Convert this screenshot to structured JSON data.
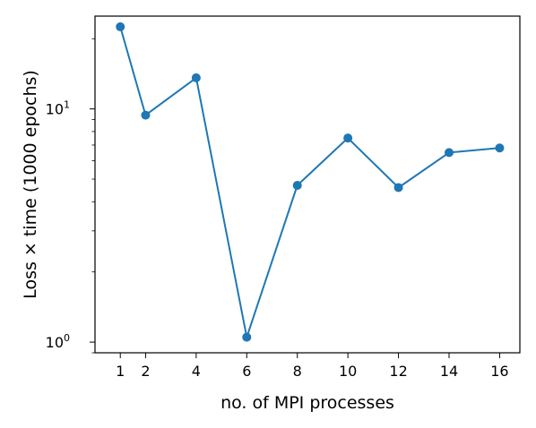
{
  "chart_data": {
    "type": "line",
    "xlabel": "no. of MPI processes",
    "ylabel": "Loss × time (1000 epochs)",
    "yscale": "log",
    "ylim": [
      0.9,
      25
    ],
    "xlim": [
      0.0,
      16.8
    ],
    "x_ticks": [
      1,
      2,
      4,
      6,
      8,
      10,
      12,
      14,
      16
    ],
    "y_ticks": [
      {
        "value": 1,
        "base": "10",
        "exp": "0"
      },
      {
        "value": 10,
        "base": "10",
        "exp": "1"
      }
    ],
    "grid": false,
    "legend": "none",
    "color": "#1f77b4",
    "series": [
      {
        "x": [
          1,
          2,
          4,
          6,
          8,
          10,
          12,
          14,
          16
        ],
        "values": [
          22.5,
          9.4,
          13.6,
          1.05,
          4.7,
          7.5,
          4.6,
          6.5,
          6.8
        ]
      }
    ]
  }
}
